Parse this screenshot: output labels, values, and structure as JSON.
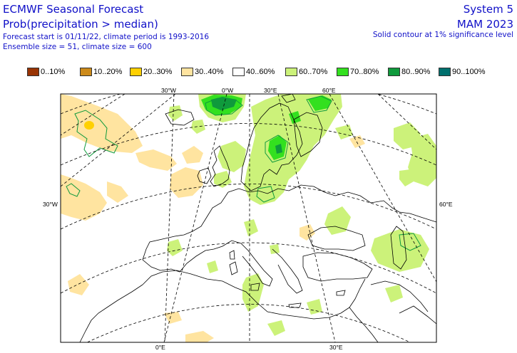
{
  "header": {
    "title_left": "ECMWF Seasonal Forecast",
    "subtitle_left": "Prob(precipitation > median)",
    "info_line1": "Forecast start is 01/11/22, climate period is 1993-2016",
    "info_line2": "Ensemble size = 51, climate size = 600",
    "title_right": "System 5",
    "subtitle_right": "MAM 2023",
    "info_right": "Solid contour at 1% significance level"
  },
  "legend": [
    {
      "label": "0..10%",
      "color": "#993404"
    },
    {
      "label": "10..20%",
      "color": "#cc8a1a"
    },
    {
      "label": "20..30%",
      "color": "#ffd000"
    },
    {
      "label": "30..40%",
      "color": "#ffe4a0"
    },
    {
      "label": "40..60%",
      "color": "#ffffff"
    },
    {
      "label": "60..70%",
      "color": "#ccf27a"
    },
    {
      "label": "70..80%",
      "color": "#33e01f"
    },
    {
      "label": "80..90%",
      "color": "#0f9a3c"
    },
    {
      "label": "90..100%",
      "color": "#00706e"
    }
  ],
  "coords": {
    "top": [
      "30°W",
      "0°W",
      "30°E",
      "60°E"
    ],
    "left": "30°W",
    "right": "60°E",
    "bottom": [
      "0°E",
      "30°E"
    ]
  },
  "colors": {
    "text": "#1010c8",
    "coast": "#000000",
    "grid": "#000000"
  }
}
